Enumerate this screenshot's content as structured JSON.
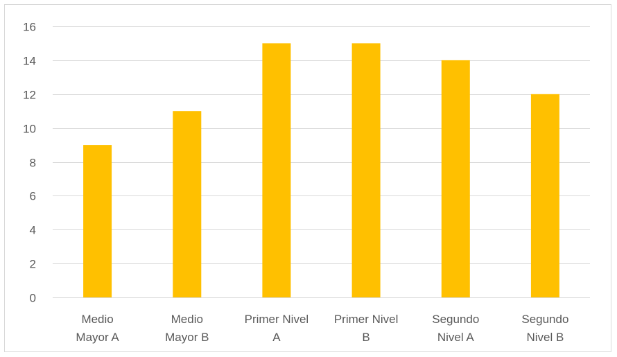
{
  "chart_data": {
    "type": "bar",
    "title": "",
    "xlabel": "",
    "ylabel": "",
    "categories": [
      [
        "Medio",
        "Mayor A"
      ],
      [
        "Medio",
        "Mayor B"
      ],
      [
        "Primer Nivel",
        "A"
      ],
      [
        "Primer Nivel",
        "B"
      ],
      [
        "Segundo",
        "Nivel A"
      ],
      [
        "Segundo",
        "Nivel B"
      ]
    ],
    "values": [
      9,
      11,
      15,
      15,
      14,
      12
    ],
    "ylim": [
      0,
      16
    ],
    "yticks": [
      0,
      2,
      4,
      6,
      8,
      10,
      12,
      14,
      16
    ],
    "grid": true,
    "legend": "none",
    "bar_color": "#FFC000",
    "gridline_color": "#D9D9D9",
    "text_color": "#595959"
  }
}
